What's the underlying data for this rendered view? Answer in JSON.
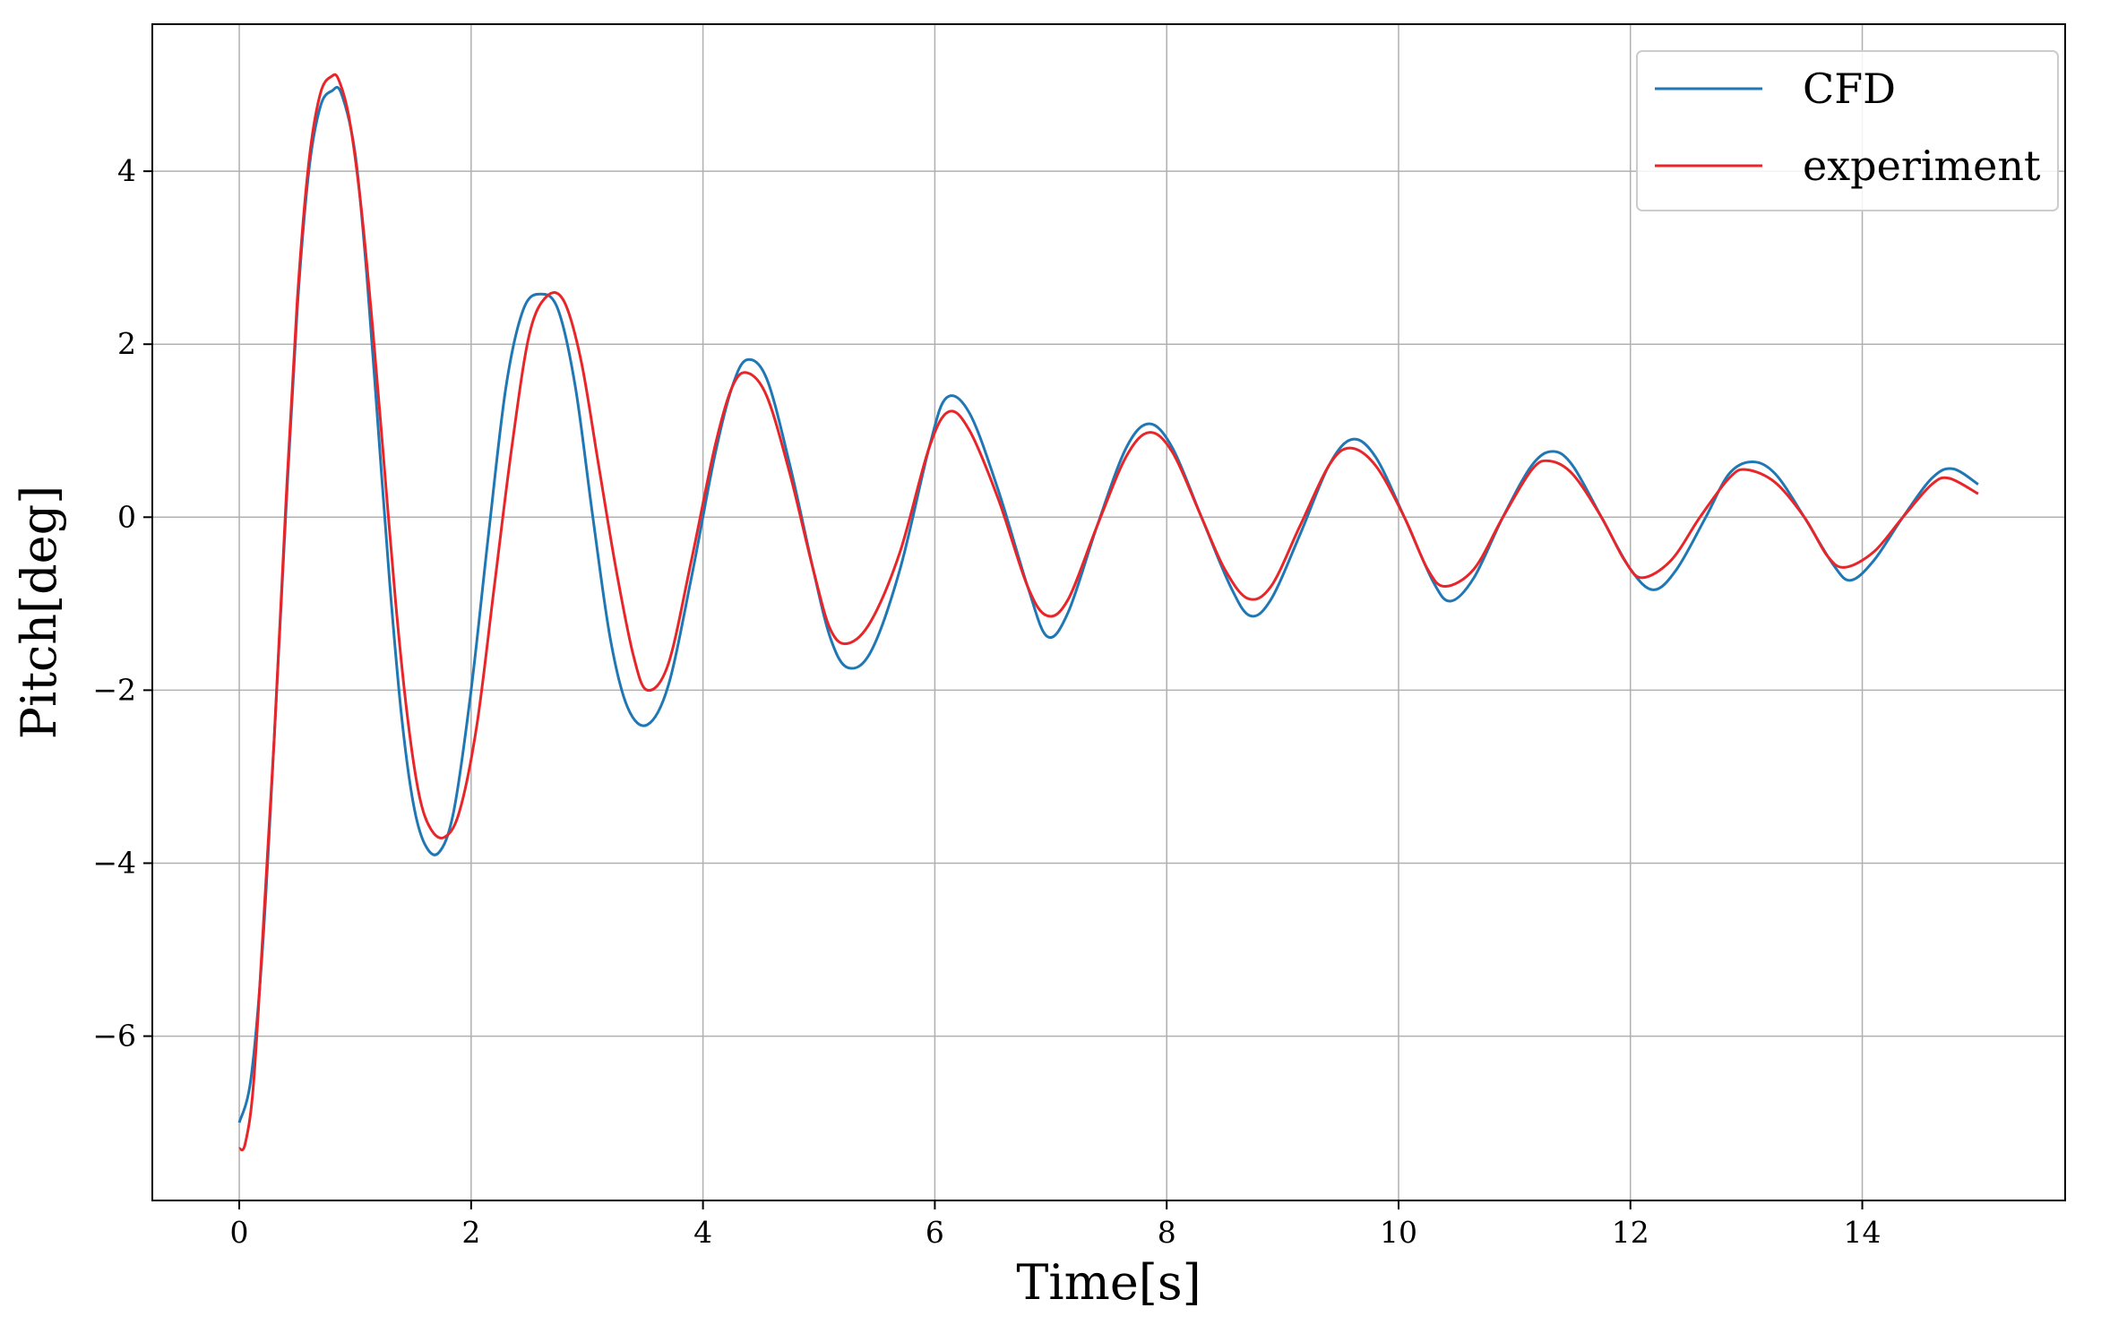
{
  "chart_data": {
    "type": "line",
    "title": "",
    "xlabel": "Time[s]",
    "ylabel": "Pitch[deg]",
    "xlim": [
      -0.75,
      15.75
    ],
    "ylim": [
      -7.9,
      5.7
    ],
    "xticks": [
      0,
      2,
      4,
      6,
      8,
      10,
      12,
      14
    ],
    "yticks": [
      -6,
      -4,
      -2,
      0,
      2,
      4
    ],
    "xtick_labels": [
      "0",
      "2",
      "4",
      "6",
      "8",
      "10",
      "12",
      "14"
    ],
    "ytick_labels": [
      "−6",
      "−4",
      "−2",
      "0",
      "2",
      "4"
    ],
    "grid": true,
    "legend_position": "top-right",
    "series": [
      {
        "name": "CFD",
        "color": "#1f77b4",
        "x": [
          0,
          0.1,
          0.2,
          0.3,
          0.4,
          0.5,
          0.6,
          0.7,
          0.8,
          0.88,
          1.0,
          1.1,
          1.2,
          1.3,
          1.4,
          1.5,
          1.6,
          1.72,
          1.85,
          2.0,
          2.15,
          2.3,
          2.45,
          2.6,
          2.75,
          2.9,
          3.05,
          3.2,
          3.35,
          3.52,
          3.7,
          3.9,
          4.1,
          4.25,
          4.38,
          4.55,
          4.75,
          4.95,
          5.1,
          5.25,
          5.45,
          5.7,
          5.95,
          6.1,
          6.3,
          6.55,
          6.8,
          6.97,
          7.15,
          7.4,
          7.65,
          7.85,
          8.05,
          8.3,
          8.55,
          8.72,
          8.9,
          9.15,
          9.4,
          9.6,
          9.8,
          10.05,
          10.3,
          10.45,
          10.65,
          10.9,
          11.15,
          11.33,
          11.5,
          11.75,
          12.0,
          12.2,
          12.4,
          12.65,
          12.85,
          13.05,
          13.25,
          13.5,
          13.75,
          13.9,
          14.1,
          14.35,
          14.6,
          14.78,
          15.0
        ],
        "y": [
          -7.0,
          -6.5,
          -5.0,
          -2.6,
          0.0,
          2.4,
          4.0,
          4.75,
          4.93,
          4.9,
          4.2,
          2.8,
          1.0,
          -0.8,
          -2.3,
          -3.3,
          -3.78,
          -3.88,
          -3.4,
          -2.0,
          -0.2,
          1.5,
          2.4,
          2.58,
          2.4,
          1.5,
          0.0,
          -1.4,
          -2.2,
          -2.4,
          -1.95,
          -0.7,
          0.7,
          1.5,
          1.82,
          1.6,
          0.6,
          -0.6,
          -1.4,
          -1.74,
          -1.55,
          -0.6,
          0.8,
          1.38,
          1.2,
          0.3,
          -0.8,
          -1.38,
          -1.1,
          -0.1,
          0.8,
          1.08,
          0.8,
          0.0,
          -0.8,
          -1.14,
          -0.95,
          -0.2,
          0.6,
          0.9,
          0.7,
          0.0,
          -0.75,
          -0.97,
          -0.7,
          0.0,
          0.6,
          0.76,
          0.6,
          0.0,
          -0.6,
          -0.84,
          -0.6,
          0.0,
          0.5,
          0.64,
          0.5,
          0.0,
          -0.55,
          -0.73,
          -0.5,
          0.0,
          0.45,
          0.56,
          0.38
        ]
      },
      {
        "name": "experiment",
        "color": "#e8262a",
        "x": [
          0,
          0.05,
          0.12,
          0.2,
          0.3,
          0.4,
          0.5,
          0.6,
          0.7,
          0.8,
          0.86,
          0.95,
          1.05,
          1.15,
          1.25,
          1.35,
          1.45,
          1.55,
          1.65,
          1.77,
          1.9,
          2.05,
          2.2,
          2.35,
          2.5,
          2.65,
          2.8,
          2.95,
          3.1,
          3.25,
          3.4,
          3.52,
          3.7,
          3.9,
          4.1,
          4.25,
          4.38,
          4.55,
          4.75,
          4.95,
          5.1,
          5.25,
          5.45,
          5.7,
          5.95,
          6.12,
          6.3,
          6.55,
          6.8,
          6.97,
          7.15,
          7.4,
          7.65,
          7.85,
          8.05,
          8.3,
          8.5,
          8.7,
          8.9,
          9.15,
          9.4,
          9.58,
          9.8,
          10.05,
          10.25,
          10.4,
          10.65,
          10.9,
          11.15,
          11.3,
          11.5,
          11.75,
          11.95,
          12.1,
          12.35,
          12.6,
          12.85,
          13.0,
          13.25,
          13.5,
          13.7,
          13.85,
          14.1,
          14.35,
          14.6,
          14.75,
          15.0
        ],
        "y": [
          -7.3,
          -7.25,
          -6.6,
          -4.9,
          -2.6,
          0.1,
          2.5,
          4.1,
          4.9,
          5.1,
          5.05,
          4.6,
          3.6,
          2.2,
          0.6,
          -1.0,
          -2.3,
          -3.2,
          -3.6,
          -3.7,
          -3.4,
          -2.4,
          -0.8,
          0.8,
          2.1,
          2.55,
          2.5,
          1.8,
          0.6,
          -0.6,
          -1.6,
          -2.0,
          -1.7,
          -0.5,
          0.8,
          1.5,
          1.67,
          1.4,
          0.5,
          -0.6,
          -1.3,
          -1.46,
          -1.2,
          -0.4,
          0.8,
          1.22,
          1.0,
          0.2,
          -0.8,
          -1.14,
          -0.95,
          -0.1,
          0.7,
          0.98,
          0.75,
          0.0,
          -0.6,
          -0.94,
          -0.8,
          -0.1,
          0.6,
          0.8,
          0.6,
          0.0,
          -0.6,
          -0.8,
          -0.6,
          0.0,
          0.55,
          0.65,
          0.5,
          0.0,
          -0.5,
          -0.7,
          -0.5,
          0.0,
          0.45,
          0.55,
          0.4,
          0.0,
          -0.45,
          -0.58,
          -0.4,
          0.0,
          0.38,
          0.45,
          0.27
        ]
      }
    ]
  }
}
